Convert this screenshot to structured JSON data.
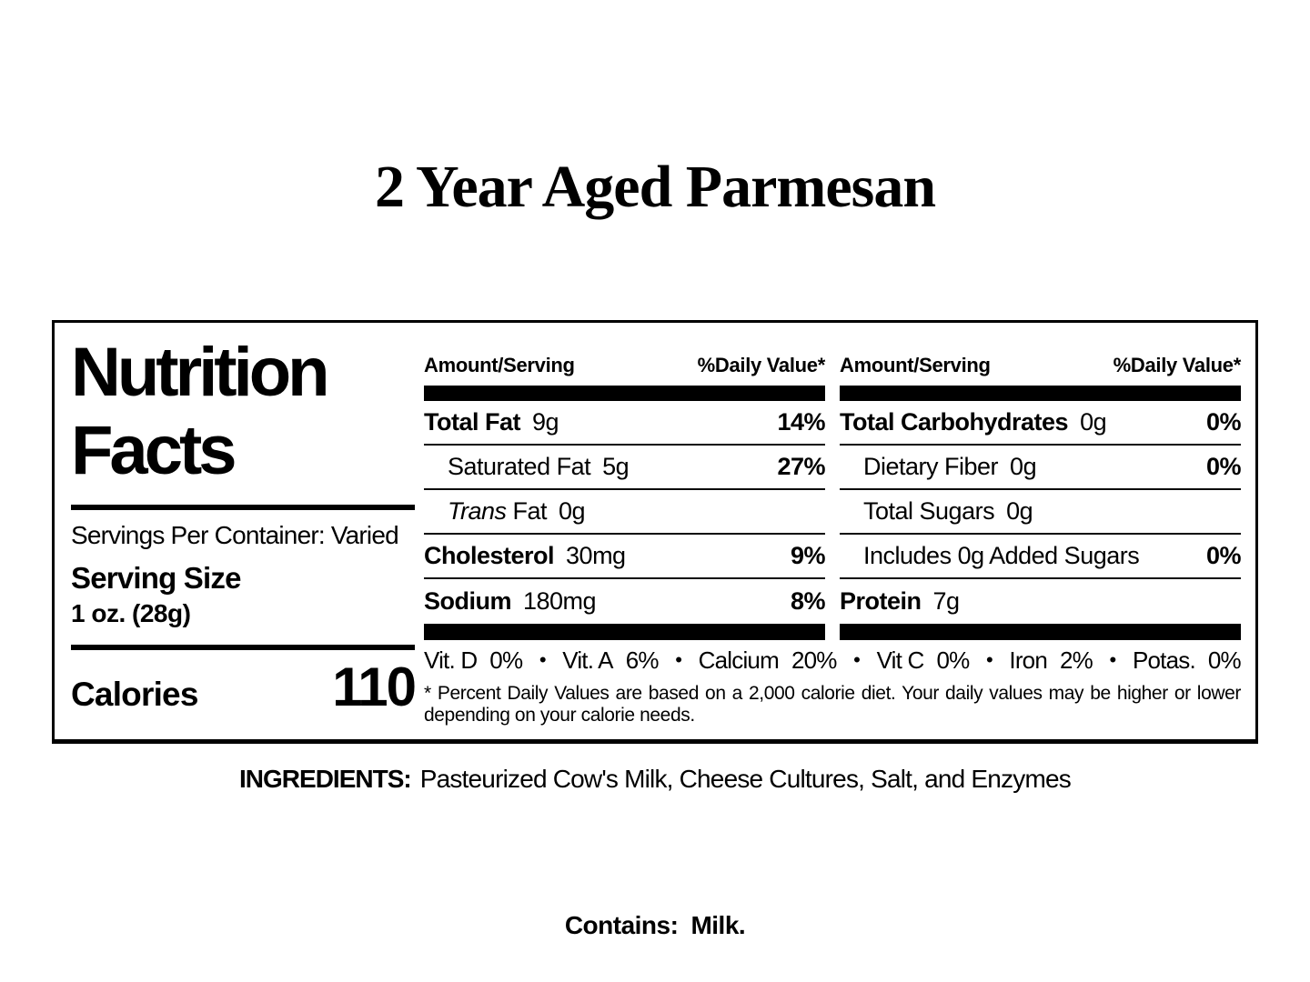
{
  "page": {
    "title": "2 Year Aged Parmesan",
    "background_color": "#ffffff",
    "text_color": "#000000"
  },
  "label": {
    "heading_line1": "Nutrition",
    "heading_line2": "Facts",
    "servings_per_container": "Servings Per Container: Varied",
    "serving_size_label": "Serving Size",
    "serving_size_value": "1 oz. (28g)",
    "calories_label": "Calories",
    "calories_value": "110",
    "col_header_amount": "Amount/Serving",
    "col_header_dv": "%Daily Value*",
    "columns": {
      "left": [
        {
          "label": "Total Fat",
          "amount": "9g",
          "dv": "14%"
        },
        {
          "label": "Saturated Fat",
          "amount": "5g",
          "dv": "27%"
        },
        {
          "label_italic": "Trans",
          "label": "Fat",
          "amount": "0g",
          "dv": ""
        },
        {
          "label": "Cholesterol",
          "amount": "30mg",
          "dv": "9%"
        },
        {
          "label": "Sodium",
          "amount": "180mg",
          "dv": "8%"
        }
      ],
      "right": [
        {
          "label": "Total Carbohydrates",
          "amount": "0g",
          "dv": "0%"
        },
        {
          "label": "Dietary Fiber",
          "amount": "0g",
          "dv": "0%"
        },
        {
          "label": "Total Sugars",
          "amount": "0g",
          "dv": ""
        },
        {
          "label": "Includes 0g Added Sugars",
          "amount": "",
          "dv": "0%"
        },
        {
          "label": "Protein",
          "amount": "7g",
          "dv": ""
        }
      ]
    },
    "vitamins_separator": "•",
    "vitamins": [
      {
        "name": "Vit. D",
        "value": "0%"
      },
      {
        "name": "Vit. A",
        "value": "6%"
      },
      {
        "name": "Calcium",
        "value": "20%"
      },
      {
        "name": "Vit C",
        "value": "0%"
      },
      {
        "name": "Iron",
        "value": "2%"
      },
      {
        "name": "Potas.",
        "value": "0%"
      }
    ],
    "footnote": "* Percent Daily Values are based on a 2,000 calorie diet. Your daily values may be higher or lower depending on your calorie needs."
  },
  "ingredients": {
    "label": "INGREDIENTS:",
    "text": "Pasteurized Cow's Milk, Cheese Cultures, Salt, and Enzymes"
  },
  "contains": {
    "label": "Contains:",
    "value": "Milk."
  }
}
